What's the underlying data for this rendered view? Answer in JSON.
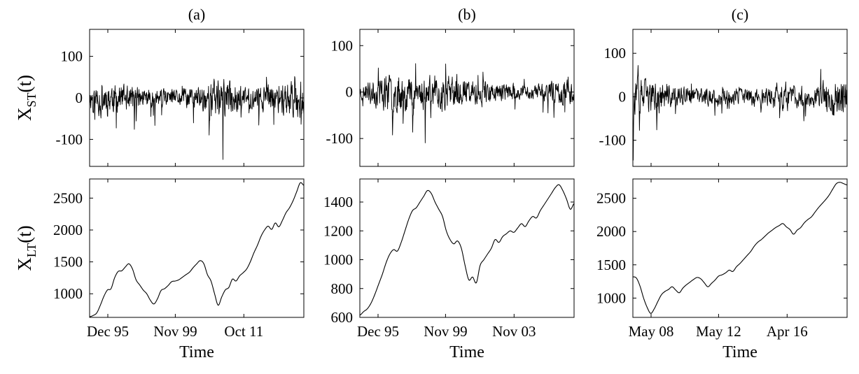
{
  "chart_data": [
    {
      "type": "line",
      "panel_label": "(a)",
      "ylabel_main": "X",
      "ylabel_sub": "ST",
      "ylabel_suffix": "(t)",
      "xlabel": "",
      "ylim": [
        -165,
        165
      ],
      "yticks": [
        -100,
        0,
        100
      ],
      "ytick_labels": [
        "-100",
        "0",
        "100"
      ],
      "xtick_labels": [
        "",
        "",
        ""
      ],
      "x_range": [
        "Dec 95",
        "Dec 21"
      ],
      "series": [
        {
          "values": []
        }
      ],
      "process": {
        "kind": "noise",
        "amp": 33,
        "spike_amp": 85,
        "seed": 11,
        "n": 700,
        "vol": [
          [
            0,
            1.0
          ],
          [
            0.06,
            1.9
          ],
          [
            0.12,
            1.4
          ],
          [
            0.22,
            1.0
          ],
          [
            0.4,
            0.7
          ],
          [
            0.55,
            1.5
          ],
          [
            0.62,
            1.9
          ],
          [
            0.72,
            1.0
          ],
          [
            0.88,
            1.3
          ],
          [
            0.96,
            2.0
          ],
          [
            1,
            1.6
          ]
        ]
      }
    },
    {
      "type": "line",
      "panel_label": "(b)",
      "ylabel_main": "",
      "ylabel_sub": "",
      "ylabel_suffix": "",
      "xlabel": "",
      "ylim": [
        -160,
        135
      ],
      "yticks": [
        -100,
        0,
        100
      ],
      "ytick_labels": [
        "-100",
        "0",
        "100"
      ],
      "xtick_labels": [
        "",
        "",
        ""
      ],
      "x_range": [
        "Dec 95",
        "Jan 09"
      ],
      "series": [
        {
          "values": []
        }
      ],
      "process": {
        "kind": "noise",
        "amp": 27,
        "spike_amp": 70,
        "seed": 23,
        "n": 650,
        "vol": [
          [
            0,
            0.8
          ],
          [
            0.1,
            1.8
          ],
          [
            0.22,
            2.0
          ],
          [
            0.35,
            1.5
          ],
          [
            0.45,
            1.8
          ],
          [
            0.5,
            1.3
          ],
          [
            0.62,
            1.0
          ],
          [
            0.8,
            0.7
          ],
          [
            0.95,
            1.3
          ],
          [
            1,
            1.2
          ]
        ]
      }
    },
    {
      "type": "line",
      "panel_label": "(c)",
      "ylabel_main": "",
      "ylabel_sub": "",
      "ylabel_suffix": "",
      "xlabel": "",
      "ylim": [
        -160,
        155
      ],
      "yticks": [
        -100,
        0,
        100
      ],
      "ytick_labels": [
        "-100",
        "0",
        "100"
      ],
      "xtick_labels": [
        "",
        "",
        ""
      ],
      "x_range": [
        "Jan 07",
        "Jan 20"
      ],
      "series": [
        {
          "values": []
        }
      ],
      "process": {
        "kind": "noise",
        "amp": 30,
        "spike_amp": 75,
        "seed": 37,
        "n": 620,
        "vol": [
          [
            0,
            2.0
          ],
          [
            0.08,
            1.6
          ],
          [
            0.2,
            1.0
          ],
          [
            0.4,
            0.8
          ],
          [
            0.6,
            0.9
          ],
          [
            0.7,
            1.4
          ],
          [
            0.85,
            1.0
          ],
          [
            0.94,
            2.1
          ],
          [
            1,
            1.7
          ]
        ]
      }
    },
    {
      "type": "line",
      "panel_label": "",
      "ylabel_main": "X",
      "ylabel_sub": "LT",
      "ylabel_suffix": "(t)",
      "xlabel": "Time",
      "ylim": [
        630,
        2800
      ],
      "yticks": [
        1000,
        1500,
        2000,
        2500
      ],
      "ytick_labels": [
        "1000",
        "1500",
        "2000",
        "2500"
      ],
      "xtick_labels": [
        "Dec 95",
        "Nov 99",
        "Oct 11"
      ],
      "x_range": [
        "Dec 95",
        "Dec 21"
      ],
      "series": [
        {
          "values": [
            640,
            660,
            700,
            820,
            960,
            1060,
            1080,
            1250,
            1350,
            1360,
            1420,
            1470,
            1390,
            1220,
            1140,
            1060,
            1000,
            900,
            840,
            920,
            1050,
            1080,
            1130,
            1190,
            1200,
            1220,
            1260,
            1300,
            1340,
            1410,
            1470,
            1520,
            1470,
            1300,
            1200,
            1000,
            820,
            950,
            1060,
            1100,
            1230,
            1200,
            1280,
            1330,
            1390,
            1500,
            1640,
            1760,
            1900,
            2000,
            2060,
            2010,
            2110,
            2050,
            2150,
            2270,
            2350,
            2460,
            2600,
            2740,
            2700
          ]
        }
      ]
    },
    {
      "type": "line",
      "panel_label": "",
      "ylabel_main": "",
      "ylabel_sub": "",
      "ylabel_suffix": "",
      "xlabel": "Time",
      "ylim": [
        600,
        1560
      ],
      "yticks": [
        600,
        800,
        1000,
        1200,
        1400
      ],
      "ytick_labels": [
        "600",
        "800",
        "1000",
        "1200",
        "1400"
      ],
      "xtick_labels": [
        "Dec 95",
        "Nov 99",
        "Nov 03"
      ],
      "x_range": [
        "Dec 95",
        "Jan 09"
      ],
      "series": [
        {
          "values": [
            615,
            640,
            660,
            700,
            760,
            830,
            900,
            980,
            1040,
            1070,
            1060,
            1120,
            1200,
            1280,
            1340,
            1360,
            1400,
            1440,
            1480,
            1460,
            1400,
            1350,
            1300,
            1200,
            1140,
            1110,
            1130,
            1080,
            960,
            860,
            880,
            840,
            960,
            1000,
            1040,
            1080,
            1140,
            1120,
            1160,
            1180,
            1200,
            1190,
            1220,
            1250,
            1230,
            1270,
            1300,
            1290,
            1340,
            1380,
            1420,
            1460,
            1500,
            1520,
            1480,
            1420,
            1350,
            1390
          ]
        }
      ]
    },
    {
      "type": "line",
      "panel_label": "",
      "ylabel_main": "",
      "ylabel_sub": "",
      "ylabel_suffix": "",
      "xlabel": "Time",
      "ylim": [
        710,
        2790
      ],
      "yticks": [
        1000,
        1500,
        2000,
        2500
      ],
      "ytick_labels": [
        "1000",
        "1500",
        "2000",
        "2500"
      ],
      "xtick_labels": [
        "May 08",
        "May 12",
        "Apr 16"
      ],
      "x_range": [
        "Jan 07",
        "Jan 20"
      ],
      "series": [
        {
          "values": [
            1320,
            1300,
            1180,
            1000,
            860,
            770,
            840,
            950,
            1050,
            1100,
            1130,
            1170,
            1120,
            1080,
            1150,
            1200,
            1240,
            1280,
            1310,
            1290,
            1230,
            1170,
            1220,
            1270,
            1330,
            1350,
            1380,
            1420,
            1400,
            1470,
            1520,
            1580,
            1640,
            1700,
            1780,
            1840,
            1880,
            1930,
            1980,
            2020,
            2060,
            2090,
            2120,
            2070,
            2030,
            1960,
            2020,
            2060,
            2130,
            2180,
            2220,
            2290,
            2360,
            2420,
            2480,
            2550,
            2640,
            2720,
            2740,
            2720,
            2700
          ]
        }
      ]
    }
  ]
}
